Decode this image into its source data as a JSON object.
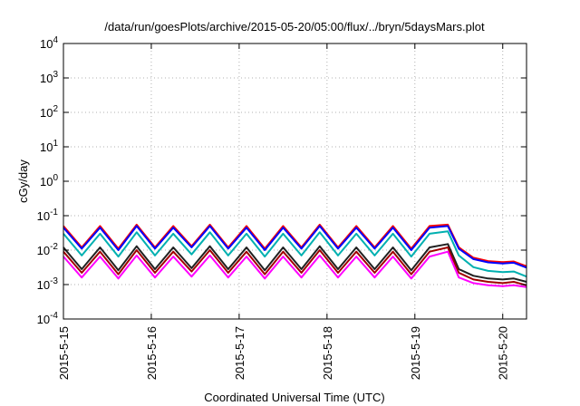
{
  "chart_data": {
    "type": "line",
    "title": "/data/run/goesPlots/archive/2015-05-20/05:00/flux/../bryn/5daysMars.plot",
    "xlabel": "Coordinated Universal Time (UTC)",
    "ylabel": "cGy/day",
    "y_scale": "log",
    "ylim": [
      "1e-4",
      "1e4"
    ],
    "xlim": [
      "2015-05-15 00:00",
      "2015-05-20 06:30"
    ],
    "grid": true,
    "legend": "none",
    "y_ticks": [
      {
        "value": 0.0001,
        "base": "10",
        "exp": "-4"
      },
      {
        "value": 0.001,
        "base": "10",
        "exp": "-3"
      },
      {
        "value": 0.01,
        "base": "10",
        "exp": "-2"
      },
      {
        "value": 0.1,
        "base": "10",
        "exp": "-1"
      },
      {
        "value": 1,
        "base": "10",
        "exp": "0"
      },
      {
        "value": 10,
        "base": "10",
        "exp": "1"
      },
      {
        "value": 100,
        "base": "10",
        "exp": "2"
      },
      {
        "value": 1000,
        "base": "10",
        "exp": "3"
      },
      {
        "value": 10000,
        "base": "10",
        "exp": "4"
      }
    ],
    "x_ticks": [
      {
        "label": "2015-5-15",
        "date": "2015-05-15 00:00"
      },
      {
        "label": "2015-5-16",
        "date": "2015-05-16 00:00"
      },
      {
        "label": "2015-5-17",
        "date": "2015-05-17 00:00"
      },
      {
        "label": "2015-5-18",
        "date": "2015-05-18 00:00"
      },
      {
        "label": "2015-5-19",
        "date": "2015-05-19 00:00"
      },
      {
        "label": "2015-5-20",
        "date": "2015-05-20 00:00"
      }
    ],
    "series": [
      {
        "color": "#ff0000",
        "x": [
          "2015-05-15 00:00",
          "2015-05-15 05:00",
          "2015-05-15 10:00",
          "2015-05-15 15:00",
          "2015-05-15 20:00",
          "2015-05-16 01:00",
          "2015-05-16 06:00",
          "2015-05-16 11:00",
          "2015-05-16 16:00",
          "2015-05-16 21:00",
          "2015-05-17 02:00",
          "2015-05-17 07:00",
          "2015-05-17 12:00",
          "2015-05-17 17:00",
          "2015-05-17 22:00",
          "2015-05-18 03:00",
          "2015-05-18 08:00",
          "2015-05-18 13:00",
          "2015-05-18 18:00",
          "2015-05-18 23:00",
          "2015-05-19 04:00",
          "2015-05-19 09:00",
          "2015-05-19 12:00",
          "2015-05-19 16:00",
          "2015-05-19 20:00",
          "2015-05-20 00:00",
          "2015-05-20 03:00",
          "2015-05-20 06:30"
        ],
        "y": [
          0.05,
          0.012,
          0.05,
          0.011,
          0.055,
          0.012,
          0.05,
          0.013,
          0.055,
          0.012,
          0.05,
          0.011,
          0.05,
          0.012,
          0.055,
          0.012,
          0.05,
          0.012,
          0.05,
          0.011,
          0.05,
          0.055,
          0.012,
          0.006,
          0.0048,
          0.0045,
          0.0047,
          0.0034
        ]
      },
      {
        "color": "#0000ff",
        "x": [
          "2015-05-15 00:00",
          "2015-05-15 05:00",
          "2015-05-15 10:00",
          "2015-05-15 15:00",
          "2015-05-15 20:00",
          "2015-05-16 01:00",
          "2015-05-16 06:00",
          "2015-05-16 11:00",
          "2015-05-16 16:00",
          "2015-05-16 21:00",
          "2015-05-17 02:00",
          "2015-05-17 07:00",
          "2015-05-17 12:00",
          "2015-05-17 17:00",
          "2015-05-17 22:00",
          "2015-05-18 03:00",
          "2015-05-18 08:00",
          "2015-05-18 13:00",
          "2015-05-18 18:00",
          "2015-05-18 23:00",
          "2015-05-19 04:00",
          "2015-05-19 09:00",
          "2015-05-19 12:00",
          "2015-05-19 16:00",
          "2015-05-19 20:00",
          "2015-05-20 00:00",
          "2015-05-20 03:00",
          "2015-05-20 06:30"
        ],
        "y": [
          0.045,
          0.011,
          0.045,
          0.01,
          0.05,
          0.011,
          0.045,
          0.012,
          0.05,
          0.011,
          0.045,
          0.01,
          0.045,
          0.011,
          0.05,
          0.011,
          0.045,
          0.011,
          0.045,
          0.01,
          0.045,
          0.05,
          0.011,
          0.0055,
          0.0044,
          0.0041,
          0.0043,
          0.0031
        ]
      },
      {
        "color": "#00b0b0",
        "x": [
          "2015-05-15 00:00",
          "2015-05-15 05:00",
          "2015-05-15 10:00",
          "2015-05-15 15:00",
          "2015-05-15 20:00",
          "2015-05-16 01:00",
          "2015-05-16 06:00",
          "2015-05-16 11:00",
          "2015-05-16 16:00",
          "2015-05-16 21:00",
          "2015-05-17 02:00",
          "2015-05-17 07:00",
          "2015-05-17 12:00",
          "2015-05-17 17:00",
          "2015-05-17 22:00",
          "2015-05-18 03:00",
          "2015-05-18 08:00",
          "2015-05-18 13:00",
          "2015-05-18 18:00",
          "2015-05-18 23:00",
          "2015-05-19 04:00",
          "2015-05-19 09:00",
          "2015-05-19 12:00",
          "2015-05-19 16:00",
          "2015-05-19 20:00",
          "2015-05-20 00:00",
          "2015-05-20 03:00",
          "2015-05-20 06:30"
        ],
        "y": [
          0.03,
          0.007,
          0.03,
          0.0065,
          0.033,
          0.007,
          0.03,
          0.0075,
          0.033,
          0.007,
          0.03,
          0.0065,
          0.03,
          0.007,
          0.033,
          0.007,
          0.03,
          0.007,
          0.03,
          0.0065,
          0.03,
          0.035,
          0.007,
          0.0032,
          0.0025,
          0.0023,
          0.0024,
          0.0017
        ]
      },
      {
        "color": "#202020",
        "x": [
          "2015-05-15 00:00",
          "2015-05-15 05:00",
          "2015-05-15 10:00",
          "2015-05-15 15:00",
          "2015-05-15 20:00",
          "2015-05-16 01:00",
          "2015-05-16 06:00",
          "2015-05-16 11:00",
          "2015-05-16 16:00",
          "2015-05-16 21:00",
          "2015-05-17 02:00",
          "2015-05-17 07:00",
          "2015-05-17 12:00",
          "2015-05-17 17:00",
          "2015-05-17 22:00",
          "2015-05-18 03:00",
          "2015-05-18 08:00",
          "2015-05-18 13:00",
          "2015-05-18 18:00",
          "2015-05-18 23:00",
          "2015-05-19 04:00",
          "2015-05-19 09:00",
          "2015-05-19 12:00",
          "2015-05-19 16:00",
          "2015-05-19 20:00",
          "2015-05-20 00:00",
          "2015-05-20 03:00",
          "2015-05-20 06:30"
        ],
        "y": [
          0.012,
          0.0028,
          0.012,
          0.0026,
          0.013,
          0.0028,
          0.012,
          0.003,
          0.013,
          0.0028,
          0.012,
          0.0026,
          0.012,
          0.0028,
          0.013,
          0.0028,
          0.012,
          0.0028,
          0.012,
          0.0026,
          0.012,
          0.015,
          0.0028,
          0.0018,
          0.0015,
          0.0014,
          0.0015,
          0.0012
        ]
      },
      {
        "color": "#a00000",
        "x": [
          "2015-05-15 00:00",
          "2015-05-15 05:00",
          "2015-05-15 10:00",
          "2015-05-15 15:00",
          "2015-05-15 20:00",
          "2015-05-16 01:00",
          "2015-05-16 06:00",
          "2015-05-16 11:00",
          "2015-05-16 16:00",
          "2015-05-16 21:00",
          "2015-05-17 02:00",
          "2015-05-17 07:00",
          "2015-05-17 12:00",
          "2015-05-17 17:00",
          "2015-05-17 22:00",
          "2015-05-18 03:00",
          "2015-05-18 08:00",
          "2015-05-18 13:00",
          "2015-05-18 18:00",
          "2015-05-18 23:00",
          "2015-05-19 04:00",
          "2015-05-19 09:00",
          "2015-05-19 12:00",
          "2015-05-19 16:00",
          "2015-05-19 20:00",
          "2015-05-20 00:00",
          "2015-05-20 03:00",
          "2015-05-20 06:30"
        ],
        "y": [
          0.009,
          0.0022,
          0.009,
          0.002,
          0.01,
          0.0022,
          0.009,
          0.0024,
          0.01,
          0.0022,
          0.009,
          0.002,
          0.009,
          0.0022,
          0.01,
          0.0022,
          0.009,
          0.0022,
          0.009,
          0.002,
          0.009,
          0.012,
          0.0022,
          0.0014,
          0.0012,
          0.0011,
          0.0012,
          0.00095
        ]
      },
      {
        "color": "#ff00ff",
        "x": [
          "2015-05-15 00:00",
          "2015-05-15 05:00",
          "2015-05-15 10:00",
          "2015-05-15 15:00",
          "2015-05-15 20:00",
          "2015-05-16 01:00",
          "2015-05-16 06:00",
          "2015-05-16 11:00",
          "2015-05-16 16:00",
          "2015-05-16 21:00",
          "2015-05-17 02:00",
          "2015-05-17 07:00",
          "2015-05-17 12:00",
          "2015-05-17 17:00",
          "2015-05-17 22:00",
          "2015-05-18 03:00",
          "2015-05-18 08:00",
          "2015-05-18 13:00",
          "2015-05-18 18:00",
          "2015-05-18 23:00",
          "2015-05-19 04:00",
          "2015-05-19 09:00",
          "2015-05-19 12:00",
          "2015-05-19 16:00",
          "2015-05-19 20:00",
          "2015-05-20 00:00",
          "2015-05-20 03:00",
          "2015-05-20 06:30"
        ],
        "y": [
          0.0065,
          0.0016,
          0.0065,
          0.0015,
          0.007,
          0.0016,
          0.0065,
          0.0017,
          0.007,
          0.0016,
          0.0065,
          0.0015,
          0.0065,
          0.0016,
          0.007,
          0.0016,
          0.0065,
          0.0016,
          0.0065,
          0.0015,
          0.0065,
          0.009,
          0.0016,
          0.0011,
          0.00095,
          0.0009,
          0.00095,
          0.00085
        ]
      }
    ]
  }
}
